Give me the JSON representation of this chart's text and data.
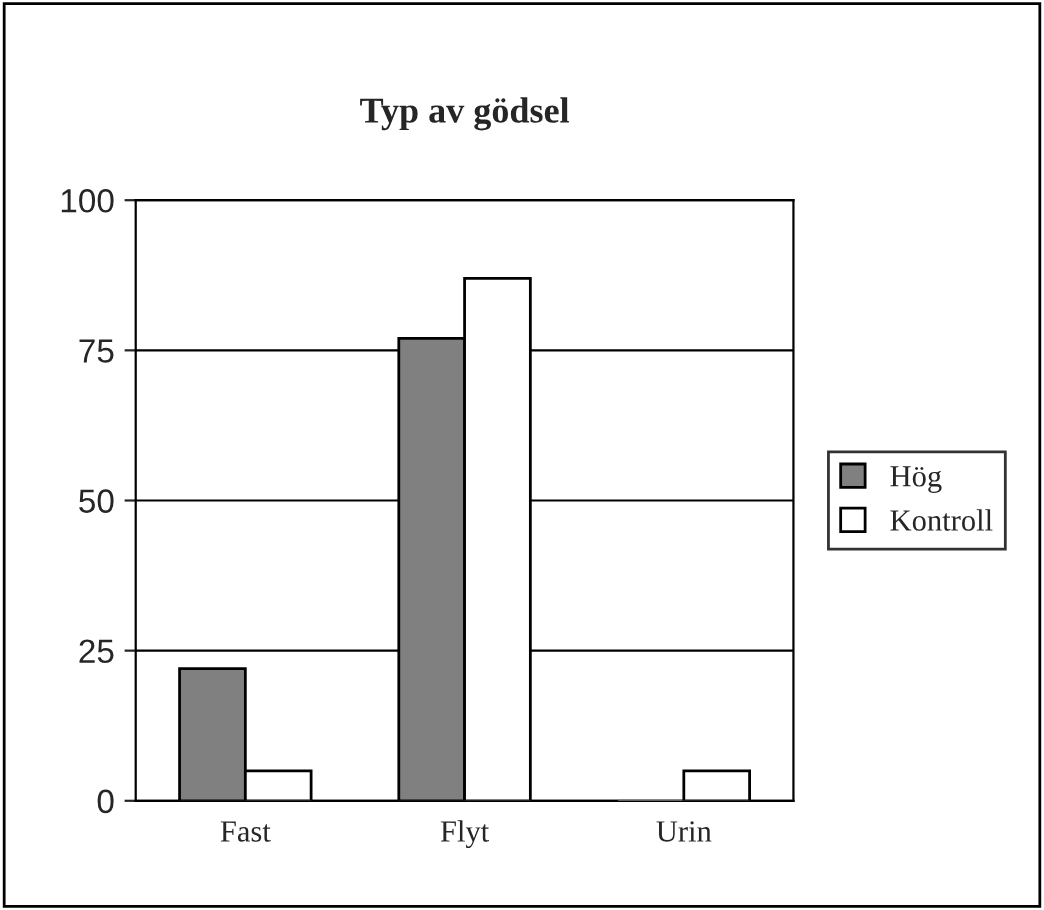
{
  "chart_data": {
    "type": "bar",
    "title": "Typ av gödsel",
    "categories": [
      "Fast",
      "Flyt",
      "Urin"
    ],
    "series": [
      {
        "name": "Hög",
        "color": "#808080",
        "values": [
          22,
          77,
          0
        ]
      },
      {
        "name": "Kontroll",
        "color": "#ffffff",
        "values": [
          5,
          87,
          5
        ]
      }
    ],
    "ylim": [
      0,
      100
    ],
    "yticks": [
      0,
      25,
      50,
      75,
      100
    ],
    "grid": "y",
    "legend": "right"
  }
}
